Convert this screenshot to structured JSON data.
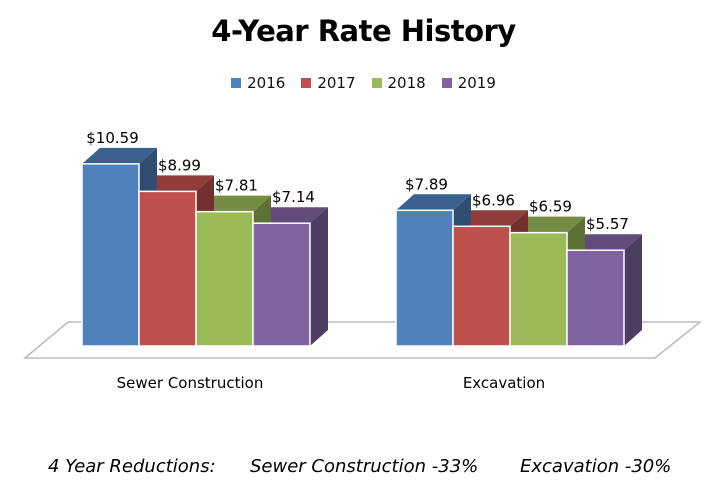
{
  "chart_data": {
    "type": "bar",
    "title": "4-Year Rate History",
    "categories": [
      "Sewer Construction",
      "Excavation"
    ],
    "series": [
      {
        "name": "2016",
        "color": "#4f81bd",
        "values": [
          10.59,
          7.89
        ],
        "labels": [
          "$10.59",
          "$7.89"
        ]
      },
      {
        "name": "2017",
        "color": "#c0504d",
        "values": [
          8.99,
          6.96
        ],
        "labels": [
          "$8.99",
          "$6.96"
        ]
      },
      {
        "name": "2018",
        "color": "#9bbb59",
        "values": [
          7.81,
          6.59
        ],
        "labels": [
          "$7.81",
          "$6.59"
        ]
      },
      {
        "name": "2019",
        "color": "#8064a2",
        "values": [
          7.14,
          5.57
        ],
        "labels": [
          "$7.14",
          "$5.57"
        ]
      }
    ],
    "legend": "top",
    "style": "3d-clustered-column",
    "grid": false
  },
  "footer": {
    "label": "4 Year Reductions:",
    "items": [
      "Sewer Construction -33%",
      "Excavation -30%"
    ]
  }
}
